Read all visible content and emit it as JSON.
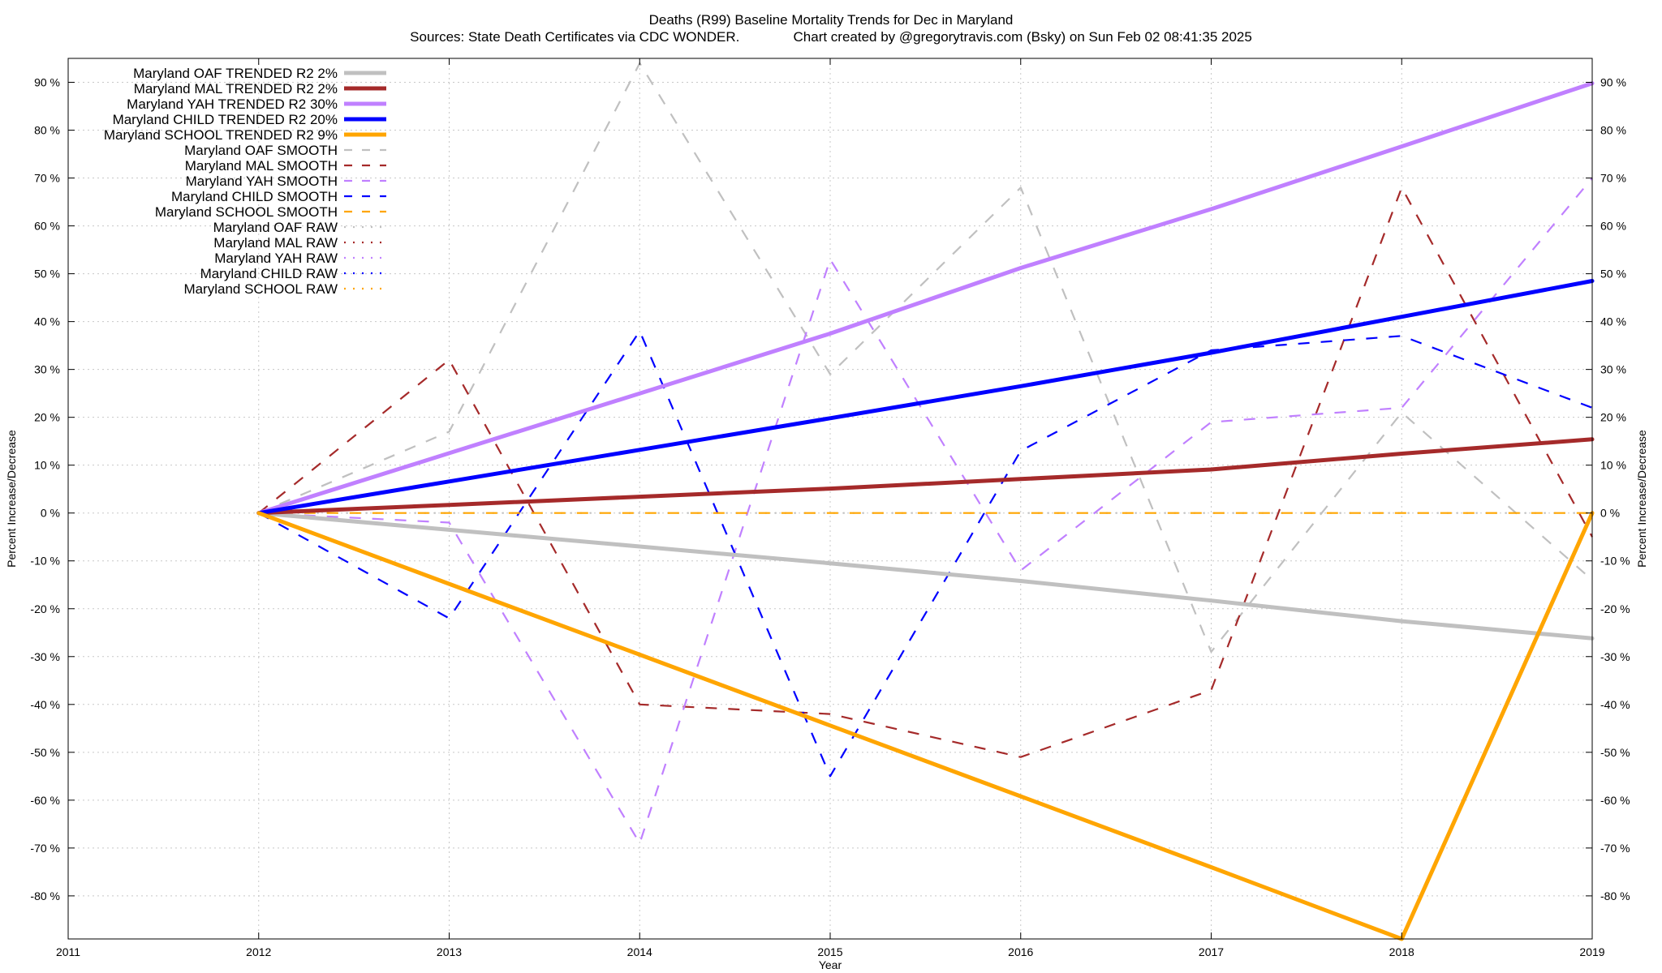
{
  "chart_data": {
    "type": "line",
    "title": "Deaths (R99)  Baseline Mortality Trends for Dec in Maryland",
    "subtitle": "Sources: State Death Certificates via CDC WONDER.              Chart created by @gregorytravis.com (Bsky) on Sun Feb 02 08:41:35 2025",
    "xlabel": "Year",
    "ylabel": "Percent Increase/Decrease",
    "y2label": "Percent Increase/Decrease",
    "xlim": [
      2011,
      2019
    ],
    "ylim": [
      -89,
      95
    ],
    "x_ticks": [
      2011,
      2012,
      2013,
      2014,
      2015,
      2016,
      2017,
      2018,
      2019
    ],
    "y_ticks": [
      90,
      80,
      70,
      60,
      50,
      40,
      30,
      20,
      10,
      0,
      -10,
      -20,
      -30,
      -40,
      -50,
      -60,
      -70,
      -80
    ],
    "y_tick_format": "{v} %",
    "grid": true,
    "legend_position": "top-left",
    "series": [
      {
        "name": "Maryland OAF TRENDED R2   2%",
        "style": "solid",
        "color": "#c0c0c0",
        "x": [
          2012,
          2013,
          2014,
          2015,
          2016,
          2017,
          2018,
          2019
        ],
        "y": [
          0,
          -3.5,
          -7,
          -10.5,
          -14.2,
          -18.3,
          -22.6,
          -26.2
        ]
      },
      {
        "name": "Maryland MAL TRENDED R2   2%",
        "style": "solid",
        "color": "#a52a2a",
        "x": [
          2012,
          2013,
          2014,
          2015,
          2016,
          2017,
          2018,
          2019
        ],
        "y": [
          0,
          1.7,
          3.4,
          5.1,
          7.1,
          9.1,
          12.4,
          15.4
        ]
      },
      {
        "name": "Maryland YAH TRENDED R2  30%",
        "style": "solid",
        "color": "#c080ff",
        "x": [
          2012,
          2013,
          2014,
          2015,
          2016,
          2017,
          2018,
          2019
        ],
        "y": [
          0,
          12.5,
          25,
          37.5,
          51.2,
          63.5,
          76.6,
          89.8
        ]
      },
      {
        "name": "Maryland CHILD TRENDED R2  20%",
        "style": "solid",
        "color": "#0000ff",
        "x": [
          2012,
          2013,
          2014,
          2015,
          2016,
          2017,
          2018,
          2019
        ],
        "y": [
          0,
          6.6,
          13.2,
          19.8,
          26.5,
          33.5,
          41,
          48.5
        ]
      },
      {
        "name": "Maryland SCHOOL TRENDED R2   9%",
        "style": "solid",
        "color": "#ffa500",
        "x": [
          2012,
          2013,
          2014,
          2015,
          2016,
          2017,
          2018,
          2019
        ],
        "y": [
          0,
          -14.8,
          -29.6,
          -44.4,
          -59.2,
          -74,
          -89,
          0
        ]
      },
      {
        "name": "Maryland OAF SMOOTH",
        "style": "dashed",
        "color": "#c0c0c0",
        "x": [
          2012,
          2013,
          2014,
          2015,
          2016,
          2017,
          2018,
          2019
        ],
        "y": [
          0,
          17,
          94,
          29,
          68,
          -29,
          21,
          -14
        ]
      },
      {
        "name": "Maryland MAL SMOOTH",
        "style": "dashed",
        "color": "#a52a2a",
        "x": [
          2012,
          2013,
          2014,
          2015,
          2016,
          2017,
          2018,
          2019
        ],
        "y": [
          0,
          32,
          -40,
          -42,
          -51,
          -37,
          68,
          -5
        ]
      },
      {
        "name": "Maryland YAH SMOOTH",
        "style": "dashed",
        "color": "#c080ff",
        "x": [
          2012,
          2013,
          2014,
          2015,
          2016,
          2017,
          2018,
          2019
        ],
        "y": [
          0,
          -2,
          -69,
          53,
          -12,
          19,
          22,
          70
        ]
      },
      {
        "name": "Maryland CHILD SMOOTH",
        "style": "dashed",
        "color": "#0000ff",
        "x": [
          2012,
          2013,
          2014,
          2015,
          2016,
          2017,
          2018,
          2019
        ],
        "y": [
          0,
          -22,
          38,
          -55,
          13,
          34,
          37,
          22
        ]
      },
      {
        "name": "Maryland SCHOOL SMOOTH",
        "style": "dashed",
        "color": "#ffa500",
        "x": [
          2012,
          2013,
          2014,
          2015,
          2016,
          2017,
          2018,
          2019
        ],
        "y": [
          0,
          0,
          0,
          0,
          0,
          0,
          0,
          0
        ]
      },
      {
        "name": "Maryland OAF RAW",
        "style": "dotted",
        "color": "#c0c0c0",
        "x": [
          2012,
          2013,
          2014,
          2015,
          2016,
          2017,
          2018,
          2019
        ],
        "y": [
          0,
          0,
          0,
          0,
          0,
          0,
          0,
          0
        ]
      },
      {
        "name": "Maryland MAL RAW",
        "style": "dotted",
        "color": "#a52a2a",
        "x": [],
        "y": []
      },
      {
        "name": "Maryland YAH RAW",
        "style": "dotted",
        "color": "#c080ff",
        "x": [],
        "y": []
      },
      {
        "name": "Maryland CHILD RAW",
        "style": "dotted",
        "color": "#0000ff",
        "x": [],
        "y": []
      },
      {
        "name": "Maryland SCHOOL RAW",
        "style": "dotted",
        "color": "#ffa500",
        "x": [],
        "y": []
      }
    ]
  }
}
